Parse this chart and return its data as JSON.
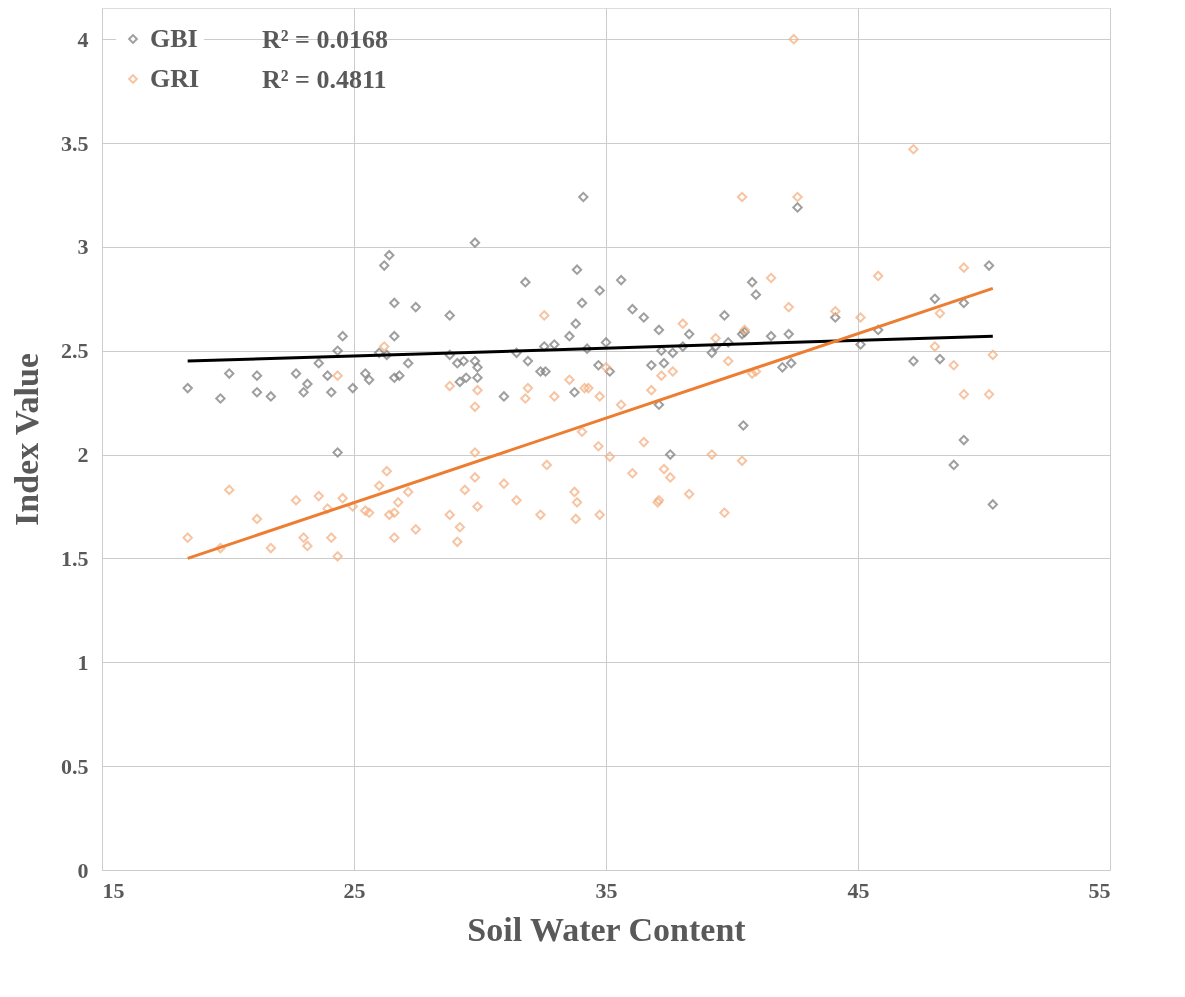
{
  "chart_data": {
    "type": "scatter",
    "xlabel": "Soil Water Content",
    "ylabel": "Index Value",
    "xlim": [
      15,
      55
    ],
    "ylim": [
      0,
      4.15
    ],
    "xticks": [
      15,
      25,
      35,
      45,
      55
    ],
    "yticks": [
      0,
      0.5,
      1,
      1.5,
      2,
      2.5,
      3,
      3.5,
      4
    ],
    "grid": true,
    "legend": "top left",
    "marker": "diamond",
    "annotations": [
      "R² = 0.0168",
      "R² = 0.4811"
    ],
    "series": [
      {
        "name": "GBI",
        "color": "#7f7f7f",
        "x": [
          18.4,
          19.7,
          20.05,
          21.15,
          21.15,
          21.7,
          22.7,
          23.15,
          23.0,
          23.6,
          23.95,
          24.1,
          24.35,
          24.55,
          24.35,
          24.95,
          25.45,
          25.6,
          26.2,
          26.4,
          26.6,
          26.6,
          26.0,
          26.3,
          26.6,
          26.8,
          27.15,
          27.45,
          28.8,
          28.8,
          29.1,
          29.35,
          29.2,
          29.45,
          29.8,
          29.9,
          29.9,
          29.8,
          30.95,
          31.45,
          31.8,
          31.9,
          32.4,
          32.6,
          32.55,
          32.95,
          33.55,
          33.75,
          33.85,
          33.8,
          34.05,
          34.25,
          34.75,
          34.7,
          35.0,
          35.15,
          35.6,
          36.05,
          36.5,
          36.8,
          37.1,
          37.1,
          37.2,
          37.3,
          37.65,
          37.55,
          38.05,
          38.3,
          39.2,
          39.35,
          39.7,
          39.85,
          40.4,
          40.5,
          40.45,
          40.8,
          40.95,
          41.55,
          42.0,
          42.25,
          42.35,
          34.1,
          42.6,
          44.1,
          45.1,
          45.8,
          47.2,
          48.05,
          48.25,
          49.2,
          50.2,
          49.2,
          48.8,
          50.35
        ],
        "values": [
          2.32,
          2.27,
          2.39,
          2.38,
          2.3,
          2.28,
          2.39,
          2.34,
          2.3,
          2.44,
          2.38,
          2.3,
          2.5,
          2.57,
          2.01,
          2.32,
          2.39,
          2.36,
          2.91,
          2.96,
          2.57,
          2.73,
          2.49,
          2.48,
          2.37,
          2.38,
          2.44,
          2.71,
          2.67,
          2.48,
          2.44,
          2.45,
          2.35,
          2.37,
          2.45,
          2.42,
          2.37,
          3.02,
          2.28,
          2.49,
          2.83,
          2.45,
          2.4,
          2.4,
          2.52,
          2.53,
          2.57,
          2.3,
          2.89,
          2.63,
          2.73,
          2.51,
          2.79,
          2.43,
          2.54,
          2.4,
          2.84,
          2.7,
          2.66,
          2.43,
          2.6,
          2.24,
          2.5,
          2.44,
          2.49,
          2.0,
          2.52,
          2.58,
          2.49,
          2.52,
          2.67,
          2.54,
          2.58,
          2.59,
          2.14,
          2.83,
          2.77,
          2.57,
          2.42,
          2.58,
          2.44,
          3.24,
          3.19,
          2.66,
          2.53,
          2.6,
          2.45,
          2.75,
          2.46,
          2.73,
          2.91,
          2.07,
          1.95,
          1.76
        ]
      },
      {
        "name": "GRI",
        "color": "#f4b183",
        "x": [
          18.4,
          20.05,
          19.7,
          21.15,
          21.7,
          22.7,
          23.0,
          23.15,
          23.6,
          23.95,
          24.1,
          24.35,
          24.55,
          24.35,
          24.95,
          25.45,
          25.6,
          26.0,
          26.3,
          26.2,
          26.4,
          26.6,
          26.75,
          26.6,
          27.15,
          27.45,
          28.8,
          29.1,
          29.2,
          29.4,
          28.8,
          29.8,
          29.9,
          29.8,
          29.8,
          29.9,
          30.95,
          31.45,
          31.8,
          31.9,
          32.55,
          32.65,
          32.4,
          32.95,
          33.55,
          33.75,
          33.85,
          33.8,
          34.05,
          34.15,
          34.3,
          34.75,
          34.7,
          34.75,
          35.15,
          35.0,
          35.6,
          36.05,
          36.5,
          36.8,
          37.05,
          37.1,
          37.2,
          37.3,
          37.55,
          37.65,
          38.05,
          38.3,
          39.2,
          39.35,
          39.7,
          39.85,
          40.4,
          40.5,
          40.8,
          40.95,
          41.55,
          42.25,
          40.4,
          42.45,
          47.2,
          42.6,
          45.8,
          49.2,
          44.1,
          45.1,
          48.25,
          48.05,
          48.8,
          50.35,
          49.2,
          50.2
        ],
        "values": [
          1.6,
          1.83,
          1.55,
          1.69,
          1.55,
          1.78,
          1.6,
          1.56,
          1.8,
          1.74,
          1.6,
          1.51,
          1.79,
          2.38,
          1.75,
          1.73,
          1.72,
          1.85,
          1.92,
          2.52,
          1.71,
          1.72,
          1.77,
          1.6,
          1.82,
          1.64,
          1.71,
          1.58,
          1.65,
          1.83,
          2.33,
          2.23,
          2.31,
          2.01,
          1.89,
          1.75,
          1.86,
          1.78,
          2.27,
          2.32,
          2.67,
          1.95,
          1.71,
          2.28,
          2.36,
          1.82,
          1.77,
          1.69,
          2.11,
          2.32,
          2.32,
          2.28,
          2.04,
          1.71,
          1.99,
          2.42,
          2.24,
          1.91,
          2.06,
          2.31,
          1.77,
          1.78,
          2.38,
          1.93,
          1.89,
          2.4,
          2.63,
          1.81,
          2.0,
          2.56,
          1.72,
          2.45,
          1.97,
          2.6,
          2.39,
          2.4,
          2.85,
          2.71,
          3.24,
          4.0,
          3.47,
          3.24,
          2.86,
          2.9,
          2.69,
          2.66,
          2.68,
          2.52,
          2.43,
          2.48,
          2.29,
          2.29
        ]
      },
      {
        "type": "line",
        "marker": "none",
        "line_style": "solid",
        "color": "#000000",
        "x": [
          18.4,
          50.35
        ],
        "values": [
          2.45,
          2.57
        ]
      },
      {
        "type": "line",
        "marker": "none",
        "line_style": "solid",
        "color": "#ed7d31",
        "x": [
          18.4,
          50.35
        ],
        "values": [
          1.5,
          2.8
        ]
      }
    ]
  }
}
